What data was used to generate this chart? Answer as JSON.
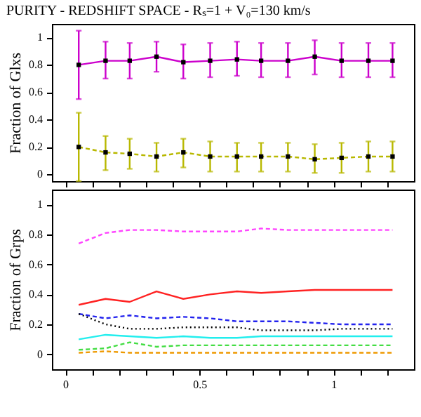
{
  "chart_data": [
    {
      "type": "line",
      "title": "PURITY - REDSHIFT SPACE - Rₛ=1 + V₀=130 km/s",
      "ylabel": "Fraction of Glxs",
      "x": [
        0.05,
        0.15,
        0.24,
        0.34,
        0.44,
        0.54,
        0.64,
        0.73,
        0.83,
        0.93,
        1.03,
        1.13,
        1.22
      ],
      "xlim": [
        -0.05,
        1.3
      ],
      "xticks": [
        0,
        {
          "value": 0.1,
          "label": null
        },
        {
          "value": 0.2,
          "label": null
        },
        {
          "value": 0.3,
          "label": null
        },
        {
          "value": 0.4,
          "label": null
        },
        0.5,
        {
          "value": 0.6,
          "label": null
        },
        {
          "value": 0.7,
          "label": null
        },
        {
          "value": 0.8,
          "label": null
        },
        {
          "value": 0.9,
          "label": null
        },
        1,
        {
          "value": 1.1,
          "label": null
        },
        {
          "value": 1.2,
          "label": null
        }
      ],
      "ylim": [
        -0.05,
        1.1
      ],
      "yticks": [
        0,
        0.2,
        0.4,
        0.6,
        0.8,
        1
      ],
      "tick_labels": "y",
      "grid": false,
      "marker": "square",
      "series": [
        {
          "color": "#cc00cc",
          "line_style": "solid",
          "values": [
            0.8,
            0.83,
            0.83,
            0.86,
            0.82,
            0.83,
            0.84,
            0.83,
            0.83,
            0.86,
            0.83,
            0.83,
            0.83
          ],
          "errors": [
            [
              0.55,
              1.05
            ],
            [
              0.7,
              0.97
            ],
            [
              0.7,
              0.96
            ],
            [
              0.75,
              0.97
            ],
            [
              0.7,
              0.95
            ],
            [
              0.71,
              0.96
            ],
            [
              0.72,
              0.97
            ],
            [
              0.71,
              0.96
            ],
            [
              0.71,
              0.96
            ],
            [
              0.73,
              0.98
            ],
            [
              0.71,
              0.96
            ],
            [
              0.71,
              0.96
            ],
            [
              0.71,
              0.96
            ]
          ]
        },
        {
          "color": "#b8b800",
          "line_style": "dashed",
          "values": [
            0.2,
            0.16,
            0.15,
            0.13,
            0.16,
            0.13,
            0.13,
            0.13,
            0.13,
            0.11,
            0.12,
            0.13,
            0.13
          ],
          "errors": [
            [
              -0.05,
              0.45
            ],
            [
              0.03,
              0.28
            ],
            [
              0.04,
              0.26
            ],
            [
              0.02,
              0.23
            ],
            [
              0.05,
              0.26
            ],
            [
              0.02,
              0.24
            ],
            [
              0.02,
              0.23
            ],
            [
              0.02,
              0.23
            ],
            [
              0.02,
              0.23
            ],
            [
              0.01,
              0.22
            ],
            [
              0.01,
              0.23
            ],
            [
              0.02,
              0.24
            ],
            [
              0.02,
              0.24
            ]
          ]
        }
      ]
    },
    {
      "type": "line",
      "ylabel": "Fraction of Grps",
      "x": [
        0.05,
        0.15,
        0.24,
        0.34,
        0.44,
        0.54,
        0.64,
        0.73,
        0.83,
        0.93,
        1.03,
        1.13,
        1.22
      ],
      "xlim": [
        -0.05,
        1.3
      ],
      "xticks": [
        0,
        {
          "value": 0.1,
          "label": null
        },
        {
          "value": 0.2,
          "label": null
        },
        {
          "value": 0.3,
          "label": null
        },
        {
          "value": 0.4,
          "label": null
        },
        0.5,
        {
          "value": 0.6,
          "label": null
        },
        {
          "value": 0.7,
          "label": null
        },
        {
          "value": 0.8,
          "label": null
        },
        {
          "value": 0.9,
          "label": null
        },
        1,
        {
          "value": 1.1,
          "label": null
        },
        {
          "value": 1.2,
          "label": null
        }
      ],
      "ylim": [
        -0.1,
        1.1
      ],
      "yticks": [
        0,
        0.2,
        0.4,
        0.6,
        0.8,
        1
      ],
      "grid": false,
      "series": [
        {
          "color": "#ff44ff",
          "line_style": "dashed",
          "values": [
            0.74,
            0.81,
            0.83,
            0.83,
            0.82,
            0.82,
            0.82,
            0.84,
            0.83,
            0.83,
            0.83,
            0.83,
            0.83
          ]
        },
        {
          "color": "#ff2222",
          "line_style": "solid",
          "values": [
            0.33,
            0.37,
            0.35,
            0.42,
            0.37,
            0.4,
            0.42,
            0.41,
            0.42,
            0.43,
            0.43,
            0.43,
            0.43
          ]
        },
        {
          "color": "#2222ee",
          "line_style": "dashed",
          "values": [
            0.27,
            0.24,
            0.26,
            0.24,
            0.25,
            0.24,
            0.22,
            0.22,
            0.22,
            0.21,
            0.2,
            0.2,
            0.2
          ]
        },
        {
          "color": "#000000",
          "line_style": "dotted",
          "values": [
            0.27,
            0.2,
            0.17,
            0.17,
            0.18,
            0.18,
            0.18,
            0.16,
            0.16,
            0.16,
            0.17,
            0.17,
            0.17
          ]
        },
        {
          "color": "#22eeee",
          "line_style": "solid",
          "values": [
            0.1,
            0.13,
            0.12,
            0.11,
            0.12,
            0.11,
            0.11,
            0.12,
            0.12,
            0.12,
            0.12,
            0.12,
            0.12
          ]
        },
        {
          "color": "#44dd44",
          "line_style": "dashed",
          "values": [
            0.03,
            0.04,
            0.08,
            0.05,
            0.06,
            0.06,
            0.06,
            0.06,
            0.06,
            0.06,
            0.06,
            0.06,
            0.06
          ]
        },
        {
          "color": "#ee9900",
          "line_style": "dashed",
          "values": [
            0.01,
            0.02,
            0.01,
            0.01,
            0.01,
            0.01,
            0.01,
            0.01,
            0.01,
            0.01,
            0.01,
            0.01,
            0.01
          ]
        }
      ]
    }
  ]
}
